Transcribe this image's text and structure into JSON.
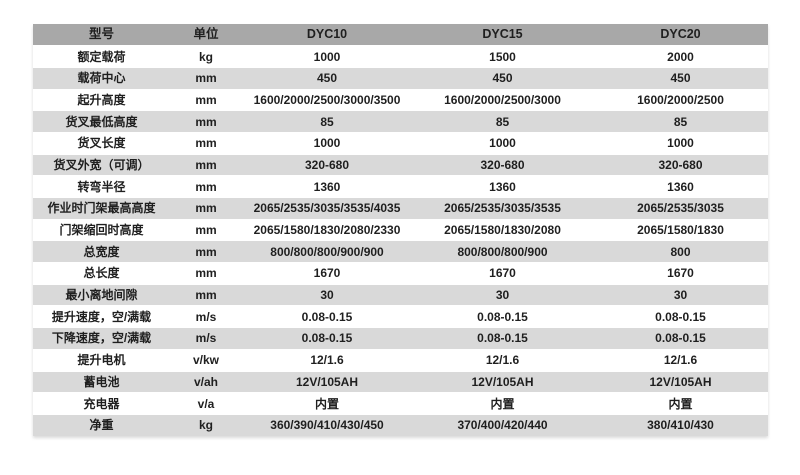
{
  "colors": {
    "header_bg": "#a8a8a8",
    "row_white_bg": "#ffffff",
    "row_gray_bg": "#d9d9d9",
    "text": "#1f1f1f",
    "page_bg": "#ffffff"
  },
  "table": {
    "headers": [
      "型号",
      "单位",
      "DYC10",
      "DYC15",
      "DYC20"
    ],
    "rows": [
      [
        "额定载荷",
        "kg",
        "1000",
        "1500",
        "2000"
      ],
      [
        "载荷中心",
        "mm",
        "450",
        "450",
        "450"
      ],
      [
        "起升高度",
        "mm",
        "1600/2000/2500/3000/3500",
        "1600/2000/2500/3000",
        "1600/2000/2500"
      ],
      [
        "货叉最低高度",
        "mm",
        "85",
        "85",
        "85"
      ],
      [
        "货叉长度",
        "mm",
        "1000",
        "1000",
        "1000"
      ],
      [
        "货叉外宽（可调）",
        "mm",
        "320-680",
        "320-680",
        "320-680"
      ],
      [
        "转弯半径",
        "mm",
        "1360",
        "1360",
        "1360"
      ],
      [
        "作业时门架最高高度",
        "mm",
        "2065/2535/3035/3535/4035",
        "2065/2535/3035/3535",
        "2065/2535/3035"
      ],
      [
        "门架缩回时高度",
        "mm",
        "2065/1580/1830/2080/2330",
        "2065/1580/1830/2080",
        "2065/1580/1830"
      ],
      [
        "总宽度",
        "mm",
        "800/800/800/900/900",
        "800/800/800/900",
        "800"
      ],
      [
        "总长度",
        "mm",
        "1670",
        "1670",
        "1670"
      ],
      [
        "最小离地间隙",
        "mm",
        "30",
        "30",
        "30"
      ],
      [
        "提升速度，空/满载",
        "m/s",
        "0.08-0.15",
        "0.08-0.15",
        "0.08-0.15"
      ],
      [
        "下降速度，空/满载",
        "m/s",
        "0.08-0.15",
        "0.08-0.15",
        "0.08-0.15"
      ],
      [
        "提升电机",
        "v/kw",
        "12/1.6",
        "12/1.6",
        "12/1.6"
      ],
      [
        "蓄电池",
        "v/ah",
        "12V/105AH",
        "12V/105AH",
        "12V/105AH"
      ],
      [
        "充电器",
        "v/a",
        "内置",
        "内置",
        "内置"
      ],
      [
        "净重",
        "kg",
        "360/390/410/430/450",
        "370/400/420/440",
        "380/410/430"
      ]
    ]
  }
}
